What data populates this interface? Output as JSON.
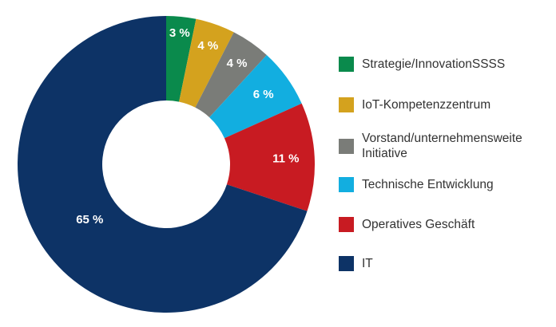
{
  "chart_data": {
    "type": "pie",
    "variant": "donut",
    "title": "",
    "start_angle": "12 o'clock",
    "direction": "clockwise",
    "categories": [
      "Strategie/InnovationSSSS",
      "IoT-Kompetenzzentrum",
      "Vorstand/unternehmensweite Initiative",
      "Technische Entwicklung",
      "Operatives Geschäft",
      "IT"
    ],
    "values": [
      3,
      4,
      4,
      6,
      11,
      65
    ],
    "value_labels": [
      "3 %",
      "4 %",
      "4 %",
      "6 %",
      "11 %",
      "65 %"
    ],
    "colors": [
      "#0a8a4c",
      "#d4a21e",
      "#7a7c78",
      "#12aee0",
      "#c81b22",
      "#0d3366"
    ],
    "legend_position": "right",
    "unit": "%"
  },
  "legend": {
    "items": [
      {
        "label": "Strategie/InnovationSSSS",
        "color": "#0a8a4c"
      },
      {
        "label": "IoT-Kompetenzzentrum",
        "color": "#d4a21e"
      },
      {
        "label": "Vorstand/unternehmensweite Initiative",
        "color": "#7a7c78"
      },
      {
        "label": "Technische Entwicklung",
        "color": "#12aee0"
      },
      {
        "label": "Operatives Geschäft",
        "color": "#c81b22"
      },
      {
        "label": "IT",
        "color": "#0d3366"
      }
    ]
  }
}
